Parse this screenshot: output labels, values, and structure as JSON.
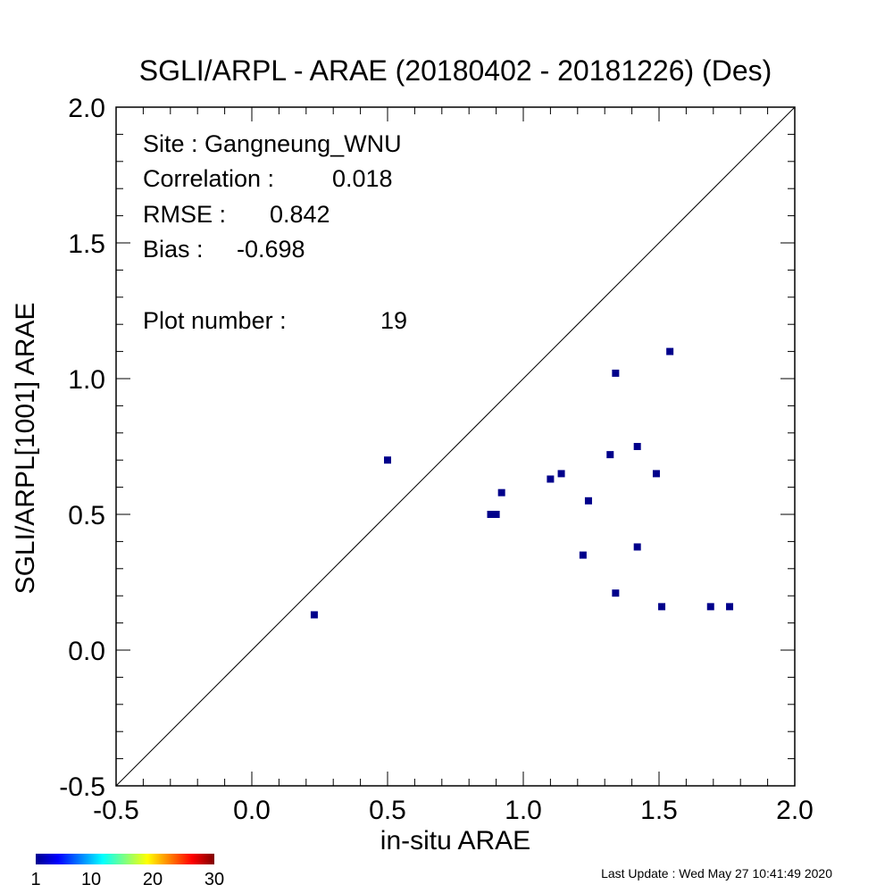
{
  "chart_data": {
    "type": "scatter",
    "title": "SGLI/ARPL - ARAE (20180402 - 20181226) (Des)",
    "xlabel": "in-situ ARAE",
    "ylabel": "SGLI/ARPL[1001]    ARAE",
    "xlim": [
      -0.5,
      2.0
    ],
    "ylim": [
      -0.5,
      2.0
    ],
    "x_ticks": [
      "-0.5",
      "0.0",
      "0.5",
      "1.0",
      "1.5",
      "2.0"
    ],
    "y_ticks": [
      "-0.5",
      "0.0",
      "0.5",
      "1.0",
      "1.5",
      "2.0"
    ],
    "one_to_one_line": true,
    "grid": false,
    "point_color": "#00008b",
    "points": [
      {
        "x": 0.23,
        "y": 0.13
      },
      {
        "x": 0.5,
        "y": 0.7
      },
      {
        "x": 0.88,
        "y": 0.5
      },
      {
        "x": 0.9,
        "y": 0.5
      },
      {
        "x": 0.92,
        "y": 0.58
      },
      {
        "x": 1.1,
        "y": 0.63
      },
      {
        "x": 1.14,
        "y": 0.65
      },
      {
        "x": 1.22,
        "y": 0.35
      },
      {
        "x": 1.24,
        "y": 0.55
      },
      {
        "x": 1.32,
        "y": 0.72
      },
      {
        "x": 1.34,
        "y": 1.02
      },
      {
        "x": 1.34,
        "y": 0.21
      },
      {
        "x": 1.42,
        "y": 0.75
      },
      {
        "x": 1.42,
        "y": 0.38
      },
      {
        "x": 1.49,
        "y": 0.65
      },
      {
        "x": 1.51,
        "y": 0.16
      },
      {
        "x": 1.54,
        "y": 1.1
      },
      {
        "x": 1.69,
        "y": 0.16
      },
      {
        "x": 1.76,
        "y": 0.16
      }
    ],
    "stats": {
      "site": "Site : Gangneung_WNU",
      "correlation_label": "Correlation :",
      "correlation_value": "0.018",
      "rmse_label": "RMSE :",
      "rmse_value": "0.842",
      "bias_label": "Bias :",
      "bias_value": "-0.698",
      "plot_number_label": "Plot number :",
      "plot_number_value": "19"
    },
    "colorbar": {
      "labels": [
        "1",
        "10",
        "20",
        "30"
      ],
      "label_values": [
        1,
        10,
        20,
        30
      ],
      "min": 1,
      "max": 30,
      "colors": [
        "#00008f",
        "#0000ff",
        "#0080ff",
        "#00ffff",
        "#80ff80",
        "#ffff00",
        "#ff8000",
        "#ff0000",
        "#800000"
      ]
    },
    "footer": "Last Update : Wed May 27 10:41:49 2020"
  }
}
